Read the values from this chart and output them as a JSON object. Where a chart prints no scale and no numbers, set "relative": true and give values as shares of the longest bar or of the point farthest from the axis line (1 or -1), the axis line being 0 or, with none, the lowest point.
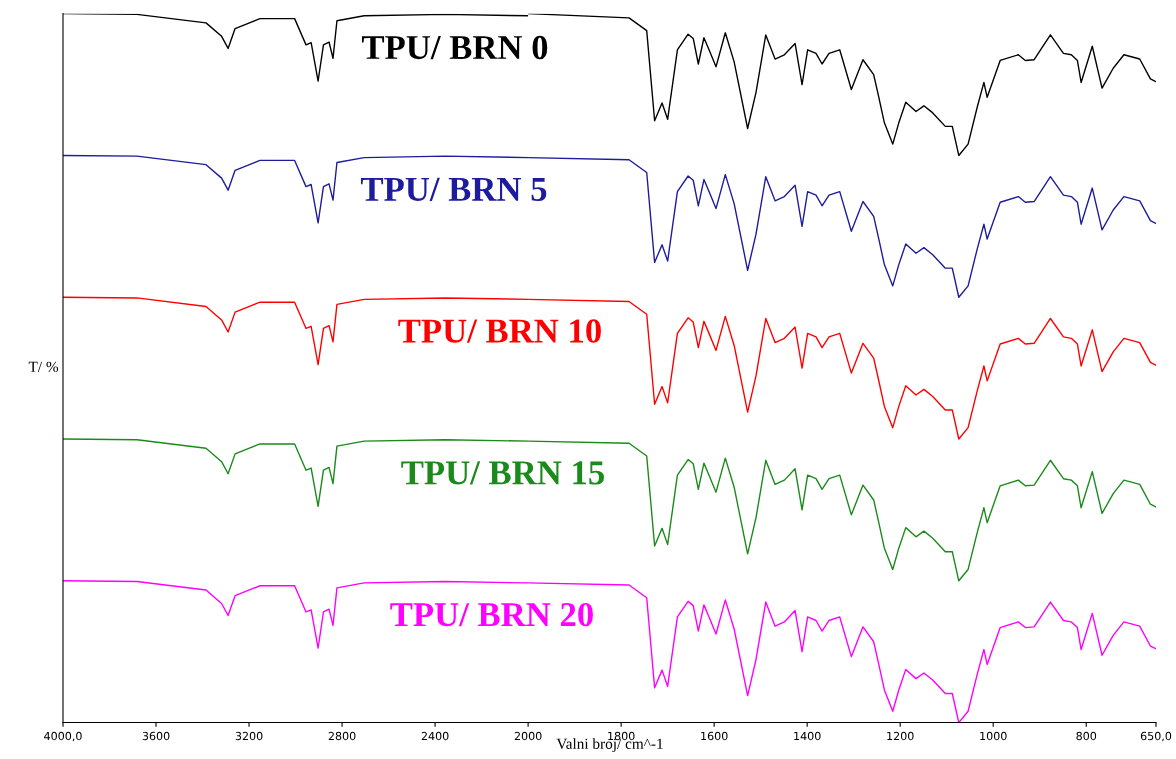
{
  "chart_data": [
    {
      "type": "line",
      "ylabel": "T/ %",
      "relative": true,
      "tick_labels": "x",
      "grid": false,
      "legend": false,
      "marker": "none",
      "line_style": "solid",
      "xlim": [
        4000,
        2000
      ],
      "xticks": [
        {
          "value": 4000,
          "label": "4000,0"
        },
        3600,
        3200,
        2800,
        2400,
        2000
      ],
      "x": [
        4000,
        3682,
        3385,
        3318,
        3290,
        3260,
        3153,
        3004,
        2955,
        2933,
        2903,
        2880,
        2856,
        2839,
        2822,
        2705,
        2357,
        2000
      ],
      "series": [
        {
          "name": "TPU/ BRN 0",
          "color": "#000000",
          "values": [
            1.0,
            0.999,
            0.987,
            0.968,
            0.951,
            0.979,
            0.993,
            0.993,
            0.956,
            0.959,
            0.905,
            0.956,
            0.96,
            0.937,
            0.99,
            0.997,
            0.999,
            0.997
          ]
        },
        {
          "name": "TPU/ BRN 5",
          "color": "#1c1c9c",
          "values": [
            0.8,
            0.799,
            0.787,
            0.768,
            0.751,
            0.779,
            0.793,
            0.793,
            0.756,
            0.759,
            0.705,
            0.756,
            0.76,
            0.737,
            0.79,
            0.797,
            0.799,
            0.797
          ]
        },
        {
          "name": "TPU/ BRN 10",
          "color": "#ff0000",
          "values": [
            0.6,
            0.599,
            0.587,
            0.568,
            0.551,
            0.579,
            0.593,
            0.593,
            0.556,
            0.559,
            0.505,
            0.556,
            0.56,
            0.537,
            0.59,
            0.597,
            0.599,
            0.597
          ]
        },
        {
          "name": "TPU/ BRN 15",
          "color": "#1a8a1a",
          "values": [
            0.4,
            0.399,
            0.387,
            0.368,
            0.351,
            0.379,
            0.393,
            0.393,
            0.356,
            0.359,
            0.305,
            0.356,
            0.36,
            0.337,
            0.39,
            0.397,
            0.399,
            0.397
          ]
        },
        {
          "name": "TPU/ BRN 20",
          "color": "#ff00ff",
          "values": [
            0.2,
            0.199,
            0.187,
            0.168,
            0.151,
            0.179,
            0.193,
            0.193,
            0.156,
            0.159,
            0.105,
            0.156,
            0.16,
            0.137,
            0.19,
            0.197,
            0.199,
            0.197
          ]
        }
      ]
    },
    {
      "type": "line",
      "xlabel": "Valni broj/ cm^-1",
      "relative": true,
      "tick_labels": "x",
      "grid": false,
      "legend": false,
      "marker": "none",
      "line_style": "solid",
      "xlim": [
        2000,
        650
      ],
      "xticks": [
        1800,
        1600,
        1400,
        1200,
        1000,
        800,
        {
          "value": 650,
          "label": "650,0"
        }
      ],
      "x": [
        2000,
        1783,
        1745,
        1728,
        1712,
        1700,
        1679,
        1656,
        1645,
        1634,
        1622,
        1611,
        1596,
        1576,
        1557,
        1528,
        1510,
        1489,
        1469,
        1449,
        1426,
        1411,
        1399,
        1381,
        1368,
        1353,
        1330,
        1305,
        1280,
        1257,
        1247,
        1234,
        1216,
        1203,
        1188,
        1166,
        1149,
        1130,
        1103,
        1088,
        1074,
        1054,
        1034,
        1020,
        1013,
        985,
        946,
        931,
        912,
        877,
        849,
        832,
        819,
        811,
        787,
        766,
        742,
        719,
        685,
        662,
        650
      ],
      "series": [
        {
          "color": "#000000",
          "values": [
            1.0,
            0.994,
            0.976,
            0.849,
            0.874,
            0.851,
            0.949,
            0.971,
            0.965,
            0.929,
            0.966,
            0.949,
            0.925,
            0.973,
            0.932,
            0.838,
            0.889,
            0.97,
            0.936,
            0.942,
            0.958,
            0.9,
            0.949,
            0.944,
            0.929,
            0.944,
            0.949,
            0.893,
            0.935,
            0.914,
            0.885,
            0.846,
            0.816,
            0.846,
            0.875,
            0.862,
            0.87,
            0.86,
            0.841,
            0.841,
            0.8,
            0.816,
            0.869,
            0.903,
            0.882,
            0.934,
            0.942,
            0.934,
            0.935,
            0.97,
            0.944,
            0.942,
            0.934,
            0.903,
            0.954,
            0.895,
            0.923,
            0.942,
            0.936,
            0.908,
            0.904
          ]
        },
        {
          "color": "#1c1c9c",
          "values": [
            0.797,
            0.794,
            0.776,
            0.649,
            0.674,
            0.651,
            0.749,
            0.771,
            0.765,
            0.729,
            0.766,
            0.749,
            0.725,
            0.773,
            0.732,
            0.638,
            0.689,
            0.77,
            0.736,
            0.742,
            0.758,
            0.7,
            0.749,
            0.744,
            0.729,
            0.744,
            0.749,
            0.693,
            0.735,
            0.714,
            0.685,
            0.646,
            0.616,
            0.646,
            0.675,
            0.662,
            0.67,
            0.66,
            0.641,
            0.641,
            0.6,
            0.616,
            0.669,
            0.703,
            0.682,
            0.734,
            0.742,
            0.734,
            0.735,
            0.77,
            0.744,
            0.742,
            0.734,
            0.703,
            0.754,
            0.695,
            0.723,
            0.742,
            0.736,
            0.708,
            0.704
          ]
        },
        {
          "color": "#ff0000",
          "values": [
            0.597,
            0.594,
            0.576,
            0.449,
            0.474,
            0.451,
            0.549,
            0.571,
            0.565,
            0.529,
            0.566,
            0.549,
            0.525,
            0.573,
            0.532,
            0.438,
            0.489,
            0.57,
            0.536,
            0.542,
            0.558,
            0.5,
            0.549,
            0.544,
            0.529,
            0.544,
            0.549,
            0.493,
            0.535,
            0.514,
            0.485,
            0.446,
            0.416,
            0.446,
            0.475,
            0.462,
            0.47,
            0.46,
            0.441,
            0.441,
            0.4,
            0.416,
            0.469,
            0.503,
            0.482,
            0.534,
            0.542,
            0.534,
            0.535,
            0.57,
            0.544,
            0.542,
            0.534,
            0.503,
            0.554,
            0.495,
            0.523,
            0.542,
            0.536,
            0.508,
            0.504
          ]
        },
        {
          "color": "#1a8a1a",
          "values": [
            0.397,
            0.394,
            0.376,
            0.249,
            0.274,
            0.251,
            0.349,
            0.371,
            0.365,
            0.329,
            0.366,
            0.349,
            0.325,
            0.373,
            0.332,
            0.238,
            0.289,
            0.37,
            0.336,
            0.342,
            0.358,
            0.3,
            0.349,
            0.344,
            0.329,
            0.344,
            0.349,
            0.293,
            0.335,
            0.314,
            0.285,
            0.246,
            0.216,
            0.246,
            0.275,
            0.262,
            0.27,
            0.26,
            0.241,
            0.241,
            0.2,
            0.216,
            0.269,
            0.303,
            0.282,
            0.334,
            0.342,
            0.334,
            0.335,
            0.37,
            0.344,
            0.342,
            0.334,
            0.303,
            0.354,
            0.295,
            0.323,
            0.342,
            0.336,
            0.308,
            0.304
          ]
        },
        {
          "color": "#ff00ff",
          "values": [
            0.197,
            0.194,
            0.176,
            0.049,
            0.074,
            0.051,
            0.149,
            0.171,
            0.165,
            0.129,
            0.166,
            0.149,
            0.125,
            0.173,
            0.132,
            0.038,
            0.089,
            0.17,
            0.136,
            0.142,
            0.158,
            0.1,
            0.149,
            0.144,
            0.129,
            0.144,
            0.149,
            0.093,
            0.135,
            0.114,
            0.085,
            0.046,
            0.016,
            0.046,
            0.075,
            0.062,
            0.07,
            0.06,
            0.041,
            0.041,
            0.0,
            0.016,
            0.069,
            0.103,
            0.082,
            0.134,
            0.142,
            0.134,
            0.135,
            0.17,
            0.144,
            0.142,
            0.134,
            0.103,
            0.154,
            0.095,
            0.123,
            0.142,
            0.136,
            0.108,
            0.104
          ]
        }
      ]
    }
  ]
}
